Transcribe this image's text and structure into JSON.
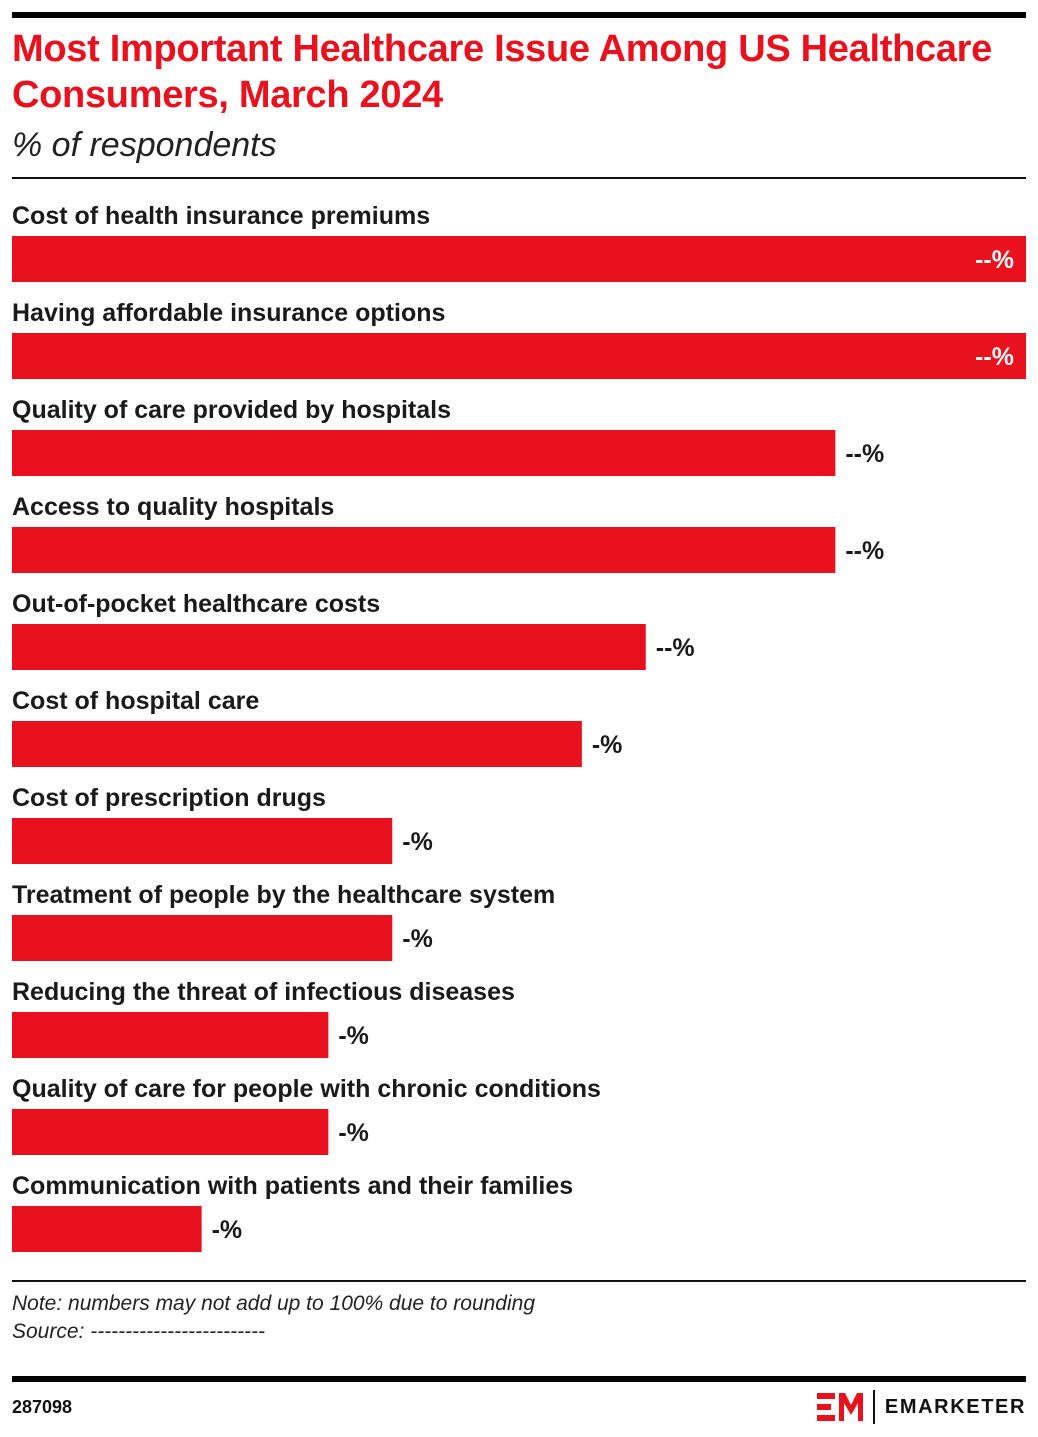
{
  "header": {
    "title": "Most Important Healthcare Issue Among US Healthcare Consumers, March 2024",
    "subtitle": "% of respondents"
  },
  "chart_data": {
    "type": "bar",
    "orientation": "horizontal",
    "categories": [
      "Cost of health insurance premiums",
      "Having affordable insurance options",
      "Quality of care provided by hospitals",
      "Access to quality hospitals",
      "Out-of-pocket healthcare costs",
      "Cost of hospital care",
      "Cost of prescription drugs",
      "Treatment of people by the healthcare system",
      "Reducing the threat of infectious diseases",
      "Quality of care for people with chronic conditions",
      "Communication with patients and their families"
    ],
    "values": [
      100,
      100,
      81.2,
      81.2,
      62.5,
      56.2,
      37.5,
      37.5,
      31.2,
      31.2,
      18.7
    ],
    "data_labels": [
      "--%",
      "--%",
      "--%",
      "--%",
      "--%",
      "-%",
      "-%",
      "-%",
      "-%",
      "-%",
      "-%"
    ],
    "color": "#e8111d",
    "legend": "none",
    "grid": false
  },
  "footer": {
    "note": "Note: numbers may not add up to 100% due to rounding",
    "source": "Source: -------------------------",
    "chart_id": "287098",
    "brand": "EMARKETER",
    "logo_mark": "EM"
  }
}
